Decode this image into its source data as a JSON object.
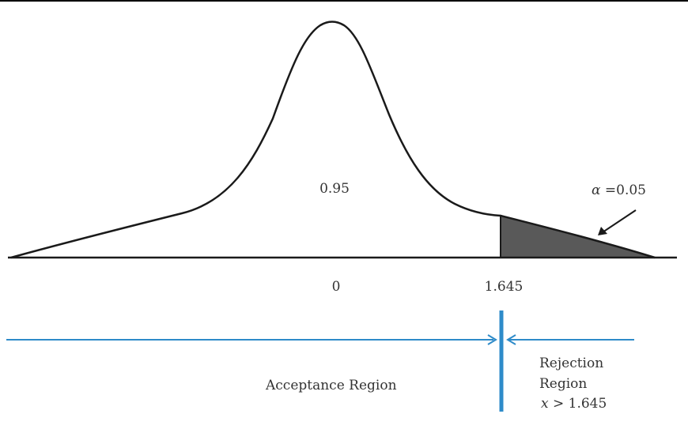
{
  "labels": {
    "area": "0.95",
    "alpha_symbol": "α",
    "alpha_value": "=0.05",
    "mean": "0",
    "critical": "1.645",
    "acceptance": "Acceptance Region",
    "rejection_line1": "Rejection",
    "rejection_line2": "Region",
    "rejection_cond_var": "x",
    "rejection_cond_rest": " > 1.645"
  },
  "colors": {
    "curve": "#1a1a1a",
    "shaded_tail": "#595959",
    "region_lines": "#2e8bc9",
    "text": "#333333"
  }
}
